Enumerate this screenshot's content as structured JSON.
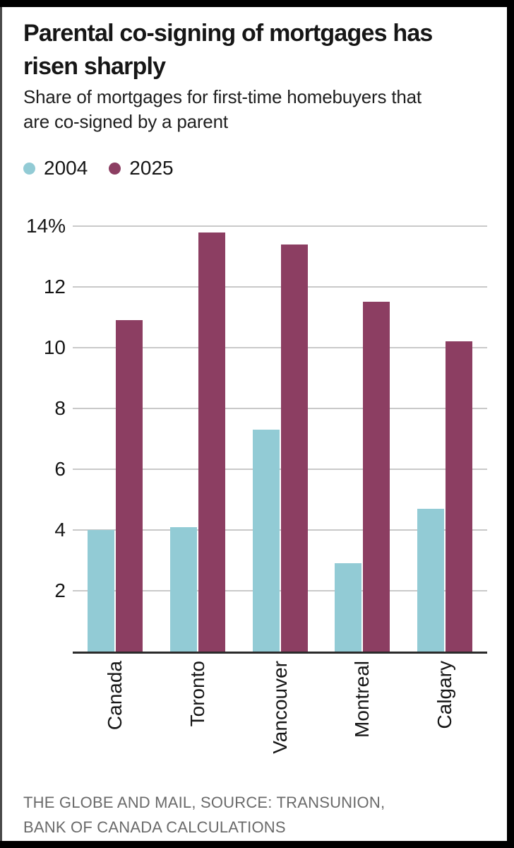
{
  "header": {
    "title_lines": [
      "Parental co-signing of mortgages has",
      "risen sharply"
    ],
    "subtitle_lines": [
      "Share of mortgages for first-time homebuyers that",
      "are co-signed by a parent"
    ]
  },
  "legend": {
    "items": [
      {
        "label": "2004",
        "color": "#92cbd5"
      },
      {
        "label": "2025",
        "color": "#8c3e62"
      }
    ]
  },
  "chart_data": {
    "type": "bar",
    "title": "Parental co-signing of mortgages has risen sharply",
    "subtitle": "Share of mortgages for first-time homebuyers that are co-signed by a parent",
    "categories": [
      "Canada",
      "Toronto",
      "Vancouver",
      "Montreal",
      "Calgary"
    ],
    "series": [
      {
        "name": "2004",
        "color": "#92cbd5",
        "values": [
          4.0,
          4.1,
          7.3,
          2.9,
          4.7
        ]
      },
      {
        "name": "2025",
        "color": "#8c3e62",
        "values": [
          10.9,
          13.8,
          13.4,
          11.5,
          10.2
        ]
      }
    ],
    "unit": "%",
    "xlabel": "",
    "ylabel": "",
    "ylim": [
      0,
      14
    ],
    "yticks": [
      {
        "value": 2,
        "label": "2"
      },
      {
        "value": 4,
        "label": "4"
      },
      {
        "value": 6,
        "label": "6"
      },
      {
        "value": 8,
        "label": "8"
      },
      {
        "value": 10,
        "label": "10"
      },
      {
        "value": 12,
        "label": "12"
      },
      {
        "value": 14,
        "label": "14%"
      }
    ],
    "grid": "horizontal",
    "legend_position": "top-left"
  },
  "footer": {
    "source_lines": [
      "THE GLOBE AND MAIL, SOURCE: TRANSUNION,",
      "BANK OF CANADA CALCULATIONS"
    ]
  },
  "colors": {
    "bar_2004": "#92cbd5",
    "bar_2025": "#8c3e62",
    "gridline": "#c9c9c9",
    "axis": "#2b2b2b",
    "text": "#161616",
    "source_text": "#6a6a6a",
    "frame": "#000000"
  }
}
